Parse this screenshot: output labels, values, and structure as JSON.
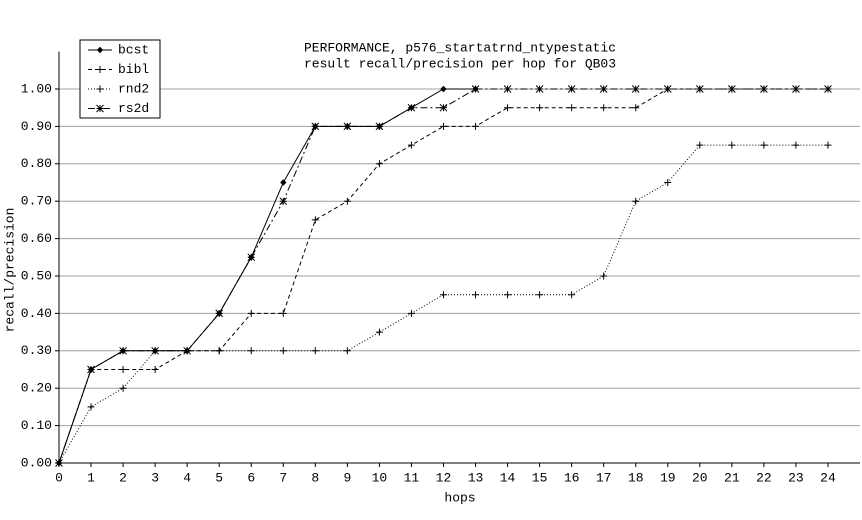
{
  "chart_data": {
    "type": "line",
    "title": "PERFORMANCE, p576_startatrnd_ntypestatic",
    "subtitle": "result recall/precision per hop for QB03",
    "x_label": "hops",
    "y_label": "recall/precision",
    "x": [
      0,
      1,
      2,
      3,
      4,
      5,
      6,
      7,
      8,
      9,
      10,
      11,
      12,
      13,
      14,
      15,
      16,
      17,
      18,
      19,
      20,
      21,
      22,
      23,
      24
    ],
    "xlim": [
      0,
      25
    ],
    "xticks": [
      0,
      1,
      2,
      3,
      4,
      5,
      6,
      7,
      8,
      9,
      10,
      11,
      12,
      13,
      14,
      15,
      16,
      17,
      18,
      19,
      20,
      21,
      22,
      23,
      24
    ],
    "ylim": [
      0,
      1.1
    ],
    "yticks": [
      {
        "value": 0,
        "label": "0.00"
      },
      {
        "value": 0.1,
        "label": "0.10"
      },
      {
        "value": 0.2,
        "label": "0.20"
      },
      {
        "value": 0.3,
        "label": "0.30"
      },
      {
        "value": 0.4,
        "label": "0.40"
      },
      {
        "value": 0.5,
        "label": "0.50"
      },
      {
        "value": 0.6,
        "label": "0.60"
      },
      {
        "value": 0.7,
        "label": "0.70"
      },
      {
        "value": 0.8,
        "label": "0.80"
      },
      {
        "value": 0.9,
        "label": "0.90"
      },
      {
        "value": 1,
        "label": "1.00"
      }
    ],
    "grid": true,
    "legend": "top-left",
    "series": [
      {
        "name": "bcst",
        "color": "#000000",
        "style": "solid",
        "marker": "diamond",
        "values": [
          0,
          0.25,
          0.3,
          0.3,
          0.3,
          0.4,
          0.55,
          0.75,
          0.9,
          0.9,
          0.9,
          0.95,
          1,
          1,
          null,
          null,
          null,
          null,
          null,
          null,
          null,
          null,
          null,
          null,
          null
        ]
      },
      {
        "name": "bibl",
        "color": "#000000",
        "style": "dashed",
        "marker": "plus",
        "values": [
          0,
          0.25,
          0.25,
          0.25,
          0.3,
          0.3,
          0.4,
          0.4,
          0.65,
          0.7,
          0.8,
          0.85,
          0.9,
          0.9,
          0.95,
          0.95,
          0.95,
          0.95,
          0.95,
          1,
          1,
          1,
          1,
          1,
          1
        ]
      },
      {
        "name": "rnd2",
        "color": "#000000",
        "style": "dotted",
        "marker": "plus",
        "values": [
          0,
          0.15,
          0.2,
          0.3,
          0.3,
          0.3,
          0.3,
          0.3,
          0.3,
          0.3,
          0.35,
          0.4,
          0.45,
          0.45,
          0.45,
          0.45,
          0.45,
          0.5,
          0.7,
          0.75,
          0.85,
          0.85,
          0.85,
          0.85,
          0.85
        ]
      },
      {
        "name": "rs2d",
        "color": "#000000",
        "style": "dashdot",
        "marker": "star",
        "values": [
          0,
          0.25,
          0.3,
          0.3,
          0.3,
          0.4,
          0.55,
          0.7,
          0.9,
          0.9,
          0.9,
          0.95,
          0.95,
          1,
          1,
          1,
          1,
          1,
          1,
          1,
          1,
          1,
          1,
          1,
          1
        ]
      }
    ]
  }
}
